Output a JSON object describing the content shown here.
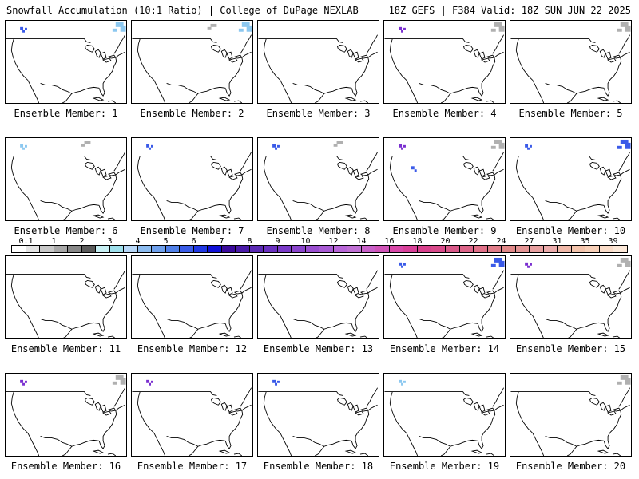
{
  "header": {
    "left": "Snowfall Accumulation (10:1 Ratio) | College of DuPage NEXLAB",
    "right": "18Z GEFS | F384 Valid: 18Z SUN JUN 22 2025"
  },
  "members": [
    {
      "label": "Ensemble Member: 1",
      "snow": [
        {
          "region": "northeast",
          "level": "light-blue"
        },
        {
          "region": "pacific-northwest",
          "level": "blue"
        }
      ]
    },
    {
      "label": "Ensemble Member: 2",
      "snow": [
        {
          "region": "northeast",
          "level": "light-blue"
        },
        {
          "region": "northern-plains",
          "level": "gray"
        }
      ]
    },
    {
      "label": "Ensemble Member: 3",
      "snow": []
    },
    {
      "label": "Ensemble Member: 4",
      "snow": [
        {
          "region": "pacific-northwest",
          "level": "purple"
        },
        {
          "region": "northeast",
          "level": "gray"
        }
      ]
    },
    {
      "label": "Ensemble Member: 5",
      "snow": [
        {
          "region": "northeast",
          "level": "gray"
        }
      ]
    },
    {
      "label": "Ensemble Member: 6",
      "snow": [
        {
          "region": "pacific-northwest",
          "level": "light-blue"
        },
        {
          "region": "northern-plains",
          "level": "gray"
        }
      ]
    },
    {
      "label": "Ensemble Member: 7",
      "snow": [
        {
          "region": "pacific-northwest",
          "level": "blue"
        }
      ]
    },
    {
      "label": "Ensemble Member: 8",
      "snow": [
        {
          "region": "pacific-northwest",
          "level": "blue"
        },
        {
          "region": "northern-plains",
          "level": "gray"
        }
      ]
    },
    {
      "label": "Ensemble Member: 9",
      "snow": [
        {
          "region": "pacific-northwest",
          "level": "purple"
        },
        {
          "region": "northeast",
          "level": "gray"
        },
        {
          "region": "rockies",
          "level": "blue"
        }
      ]
    },
    {
      "label": "Ensemble Member: 10",
      "snow": [
        {
          "region": "northeast",
          "level": "blue"
        },
        {
          "region": "pacific-northwest",
          "level": "blue"
        }
      ]
    },
    {
      "label": "Ensemble Member: 11",
      "snow": []
    },
    {
      "label": "Ensemble Member: 12",
      "snow": []
    },
    {
      "label": "Ensemble Member: 13",
      "snow": []
    },
    {
      "label": "Ensemble Member: 14",
      "snow": [
        {
          "region": "northeast",
          "level": "blue"
        },
        {
          "region": "pacific-northwest",
          "level": "blue"
        }
      ]
    },
    {
      "label": "Ensemble Member: 15",
      "snow": [
        {
          "region": "northeast",
          "level": "gray"
        },
        {
          "region": "pacific-northwest",
          "level": "purple"
        }
      ]
    },
    {
      "label": "Ensemble Member: 16",
      "snow": [
        {
          "region": "pacific-northwest",
          "level": "purple"
        },
        {
          "region": "northeast",
          "level": "gray"
        }
      ]
    },
    {
      "label": "Ensemble Member: 17",
      "snow": [
        {
          "region": "pacific-northwest",
          "level": "purple"
        }
      ]
    },
    {
      "label": "Ensemble Member: 18",
      "snow": [
        {
          "region": "pacific-northwest",
          "level": "blue"
        }
      ]
    },
    {
      "label": "Ensemble Member: 19",
      "snow": [
        {
          "region": "pacific-northwest",
          "level": "light-blue"
        }
      ]
    },
    {
      "label": "Ensemble Member: 20",
      "snow": [
        {
          "region": "northeast",
          "level": "gray"
        }
      ]
    }
  ],
  "snow_colors": {
    "gray": "#b0b0b0",
    "light-blue": "#8cc8f0",
    "blue": "#3a5ae8",
    "purple": "#7a2fd0"
  },
  "colorbar": {
    "labels": [
      {
        "text": "0.1",
        "index": 0
      },
      {
        "text": "1",
        "index": 2
      },
      {
        "text": "2",
        "index": 4
      },
      {
        "text": "3",
        "index": 6
      },
      {
        "text": "4",
        "index": 8
      },
      {
        "text": "5",
        "index": 10
      },
      {
        "text": "6",
        "index": 12
      },
      {
        "text": "7",
        "index": 14
      },
      {
        "text": "8",
        "index": 16
      },
      {
        "text": "9",
        "index": 18
      },
      {
        "text": "10",
        "index": 20
      },
      {
        "text": "12",
        "index": 22
      },
      {
        "text": "14",
        "index": 24
      },
      {
        "text": "16",
        "index": 26
      },
      {
        "text": "18",
        "index": 28
      },
      {
        "text": "20",
        "index": 30
      },
      {
        "text": "22",
        "index": 32
      },
      {
        "text": "24",
        "index": 34
      },
      {
        "text": "27",
        "index": 36
      },
      {
        "text": "31",
        "index": 38
      },
      {
        "text": "35",
        "index": 40
      },
      {
        "text": "39",
        "index": 42
      }
    ],
    "colors": [
      "#ffffff",
      "#e4e4e4",
      "#c8c8c8",
      "#a8a8a8",
      "#888888",
      "#5a5a5a",
      "#c8f0f4",
      "#9ee0ec",
      "#b8d8f8",
      "#8cbcf0",
      "#6ea0ec",
      "#5080e8",
      "#3a5ce8",
      "#2038e4",
      "#1010d8",
      "#3a0a9c",
      "#4a1aa8",
      "#5a2ab4",
      "#6a30c0",
      "#7a3ac8",
      "#8a44cc",
      "#9a4ed0",
      "#a85ad4",
      "#b866d8",
      "#c070d4",
      "#c860c8",
      "#d054b8",
      "#d848a8",
      "#d84098",
      "#d8408c",
      "#d84a8a",
      "#d85888",
      "#dc6488",
      "#e07088",
      "#e07c88",
      "#e08888",
      "#e49494",
      "#e8a0a0",
      "#ecacac",
      "#f0b8a8",
      "#f4c4ac",
      "#f8d0b8",
      "#fadcc8",
      "#fce8d8"
    ]
  }
}
